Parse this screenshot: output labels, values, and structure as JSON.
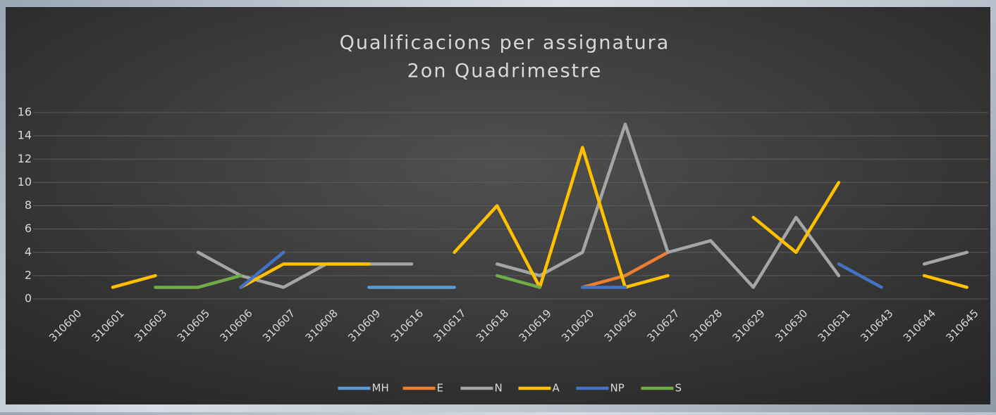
{
  "chart_data": {
    "type": "line",
    "title": [
      "Qualificacions per assignatura",
      "2on Quadrimestre"
    ],
    "categories": [
      "310600",
      "310601",
      "310603",
      "310605",
      "310606",
      "310607",
      "310608",
      "310609",
      "310616",
      "310617",
      "310618",
      "310619",
      "310620",
      "310626",
      "310627",
      "310628",
      "310629",
      "310630",
      "310631",
      "310643",
      "310644",
      "310645"
    ],
    "series": [
      {
        "name": "MH",
        "color": "#5b9bd5",
        "values": [
          null,
          null,
          null,
          null,
          null,
          null,
          null,
          1,
          1,
          1,
          null,
          null,
          null,
          null,
          null,
          null,
          null,
          null,
          null,
          null,
          null,
          null
        ]
      },
      {
        "name": "E",
        "color": "#ed7d31",
        "values": [
          null,
          null,
          null,
          null,
          null,
          null,
          null,
          null,
          null,
          null,
          null,
          null,
          1,
          2,
          4,
          null,
          null,
          null,
          null,
          null,
          null,
          null
        ]
      },
      {
        "name": "N",
        "color": "#a5a5a5",
        "values": [
          null,
          null,
          null,
          4,
          2,
          1,
          3,
          3,
          3,
          null,
          3,
          2,
          4,
          15,
          4,
          5,
          1,
          7,
          2,
          null,
          3,
          4
        ]
      },
      {
        "name": "A",
        "color": "#ffc000",
        "values": [
          null,
          1,
          2,
          null,
          1,
          3,
          3,
          3,
          null,
          4,
          8,
          1,
          13,
          1,
          2,
          null,
          7,
          4,
          10,
          null,
          2,
          1
        ]
      },
      {
        "name": "NP",
        "color": "#4472c4",
        "values": [
          null,
          null,
          null,
          null,
          1,
          4,
          null,
          null,
          null,
          null,
          null,
          null,
          1,
          1,
          null,
          null,
          null,
          null,
          3,
          1,
          null,
          null
        ]
      },
      {
        "name": "S",
        "color": "#70ad47",
        "values": [
          null,
          null,
          1,
          1,
          2,
          null,
          null,
          null,
          null,
          null,
          2,
          1,
          null,
          null,
          null,
          null,
          null,
          null,
          null,
          null,
          null,
          null
        ]
      }
    ],
    "ylim": [
      0,
      16
    ],
    "yticks": [
      0,
      2,
      4,
      6,
      8,
      10,
      12,
      14,
      16
    ],
    "grid": true,
    "legend": "bottom"
  }
}
